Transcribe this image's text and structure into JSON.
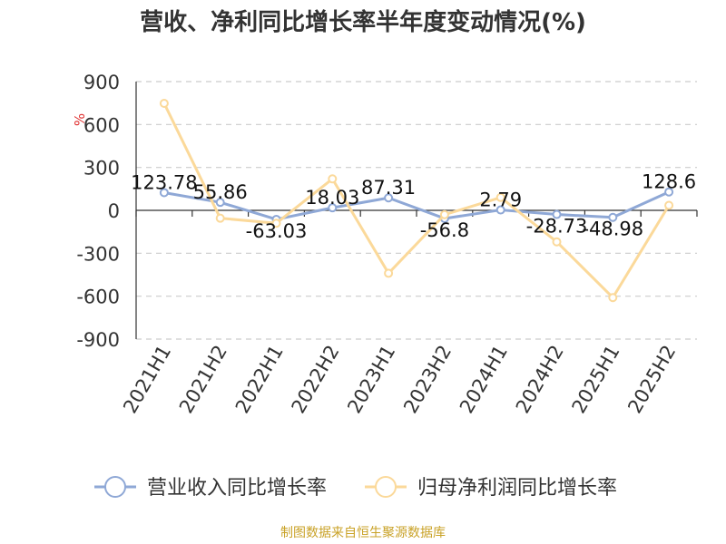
{
  "chart_data": {
    "type": "line",
    "title": "营收、净利同比增长率半年度变动情况(%)",
    "ylabel": "%",
    "xlabel": "",
    "ylim": [
      -900,
      900
    ],
    "yticks": [
      900,
      600,
      300,
      0,
      -300,
      -600,
      -900
    ],
    "yticks_labels": [
      "900",
      "600",
      "300",
      "0",
      "-300",
      "-600",
      "-900"
    ],
    "grid": true,
    "legend_position": "bottom",
    "categories": [
      "2021H1",
      "2021H2",
      "2022H1",
      "2022H2",
      "2023H1",
      "2023H2",
      "2024H1",
      "2024H2",
      "2025H1",
      "2025H2"
    ],
    "series": [
      {
        "name": "营业收入同比增长率",
        "color": "#8fa8d6",
        "values": [
          123.78,
          55.86,
          -63.03,
          18.03,
          87.31,
          -56.8,
          2.79,
          -28.73,
          -48.98,
          128.6
        ],
        "labels": [
          "123.78",
          "55.86",
          "-63.03",
          "18.03",
          "87.31",
          "-56.8",
          "2.79",
          "-28.73",
          "-48.98",
          "128.6"
        ]
      },
      {
        "name": "归母净利润同比增长率",
        "color": "#fbd99a",
        "values": [
          748,
          -55,
          -90,
          220,
          -440,
          -30,
          90,
          -220,
          -610,
          35
        ]
      }
    ]
  },
  "source": "制图数据来自恒生聚源数据库"
}
